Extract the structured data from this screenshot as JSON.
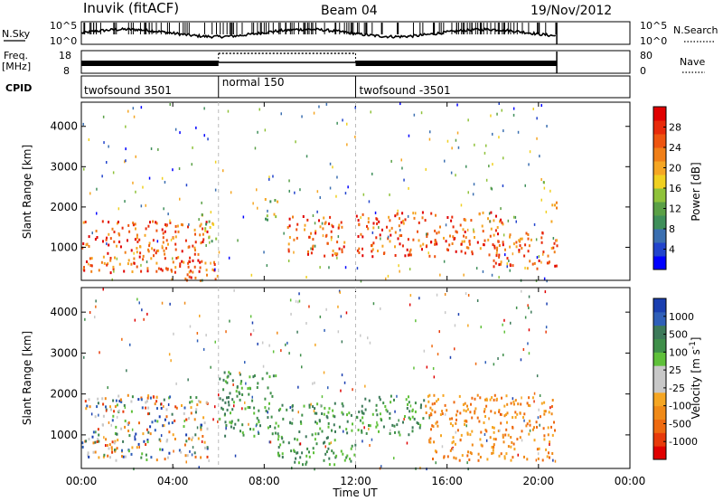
{
  "header": {
    "title": "Inuvik (fitACF)",
    "beam": "Beam 04",
    "date": "19/Nov/2012"
  },
  "time_axis": {
    "label": "Time UT",
    "ticks": [
      "00:00",
      "04:00",
      "08:00",
      "12:00",
      "16:00",
      "20:00",
      "00:00"
    ],
    "range_hours": [
      0,
      24
    ]
  },
  "noise_panel": {
    "left_label": "N.Sky",
    "right_label": "N.Search",
    "left_ticks": [
      "10^5",
      "10^0"
    ],
    "right_ticks": [
      "10^5",
      "10^0"
    ]
  },
  "freq_panel": {
    "left_label_1": "Freq.",
    "left_label_2": "[MHz]",
    "right_label": "Nave",
    "left_ticks": [
      "18",
      "8"
    ],
    "right_ticks": [
      "80",
      "0"
    ]
  },
  "cpid": {
    "label": "CPID",
    "modes": [
      {
        "name": "twofsound 3501",
        "start": 0,
        "end": 6
      },
      {
        "name": "normal 150",
        "start": 6,
        "end": 12
      },
      {
        "name": "twofsound -3501",
        "start": 12,
        "end": 24
      }
    ]
  },
  "data_end_hours": 20.8,
  "range_axis": {
    "label": "Slant Range [km]",
    "ticks": [
      "1000",
      "2000",
      "3000",
      "4000"
    ],
    "range_km": [
      180,
      4600
    ]
  },
  "power_colorbar": {
    "label": "Power [dB]",
    "ticks": [
      "4",
      "8",
      "12",
      "16",
      "20",
      "24",
      "28"
    ],
    "colors": [
      "#0000ff",
      "#2244cc",
      "#3b6fb0",
      "#3f8f5a",
      "#5aa046",
      "#8fc23a",
      "#f0d020",
      "#f5a623",
      "#f07f18",
      "#ee5510",
      "#e82a0a",
      "#e00000"
    ]
  },
  "velocity_colorbar": {
    "label": "Velocity [m s",
    "label_sup": "-1",
    "label_end": "]",
    "ticks": [
      "1000",
      "500",
      "100",
      "25",
      "-25",
      "-100",
      "-500",
      "-1000"
    ],
    "colors": [
      "#1a3fb0",
      "#2f5fb8",
      "#3d7a5a",
      "#3f8f4a",
      "#5fc03a",
      "#c8c8c8",
      "#c8c8c8",
      "#f5a623",
      "#f08a18",
      "#ee6a10",
      "#e83a0a",
      "#e00000"
    ]
  },
  "chart_data": [
    {
      "type": "line",
      "title": "Inuvik (fitACF)",
      "subtitle": "Beam 04",
      "xlabel": "Time UT",
      "ylabel": "N.Sky",
      "xlim": [
        0,
        24
      ],
      "yscale": "log",
      "ylim": [
        1,
        100000
      ]
    },
    {
      "type": "line",
      "xlabel": "Time UT",
      "ylabel": "Freq. [MHz]",
      "xlim": [
        0,
        24
      ],
      "ylim": [
        8,
        18
      ]
    },
    {
      "type": "heatmap",
      "xlabel": "Time UT",
      "ylabel": "Slant Range [km]",
      "colorbar": "Power [dB]",
      "xlim": [
        0,
        24
      ],
      "ylim": [
        180,
        4600
      ],
      "clim": [
        0,
        30
      ],
      "echo_regions": [
        {
          "t": [
            0,
            5.5
          ],
          "range": [
            400,
            1700
          ],
          "level": "high"
        },
        {
          "t": [
            3.8,
            6
          ],
          "range": [
            200,
            700
          ],
          "level": "high"
        },
        {
          "t": [
            5.2,
            5.9
          ],
          "range": [
            1100,
            1900
          ],
          "level": "medium"
        },
        {
          "t": [
            8,
            8.6
          ],
          "range": [
            1700,
            2300
          ],
          "level": "medium"
        },
        {
          "t": [
            9,
            11.5
          ],
          "range": [
            800,
            1800
          ],
          "level": "high"
        },
        {
          "t": [
            12,
            18.5
          ],
          "range": [
            800,
            1900
          ],
          "level": "high"
        },
        {
          "t": [
            18,
            20.8
          ],
          "range": [
            500,
            1400
          ],
          "level": "high"
        },
        {
          "t": [
            20.5,
            20.8
          ],
          "range": [
            1500,
            2200
          ],
          "level": "high"
        }
      ]
    },
    {
      "type": "heatmap",
      "xlabel": "Time UT",
      "ylabel": "Slant Range [km]",
      "colorbar": "Velocity [m s-1]",
      "xlim": [
        0,
        24
      ],
      "ylim": [
        180,
        4600
      ],
      "clim": [
        -1000,
        1000
      ],
      "echo_regions": [
        {
          "t": [
            0,
            5.5
          ],
          "range": [
            400,
            2000
          ],
          "level": "mixed"
        },
        {
          "t": [
            6,
            8.5
          ],
          "range": [
            1000,
            2600
          ],
          "level": "positive"
        },
        {
          "t": [
            8.5,
            12
          ],
          "range": [
            300,
            1800
          ],
          "level": "positive"
        },
        {
          "t": [
            12,
            15
          ],
          "range": [
            1000,
            2000
          ],
          "level": "positive"
        },
        {
          "t": [
            15,
            20.8
          ],
          "range": [
            400,
            2000
          ],
          "level": "negative"
        }
      ]
    }
  ]
}
